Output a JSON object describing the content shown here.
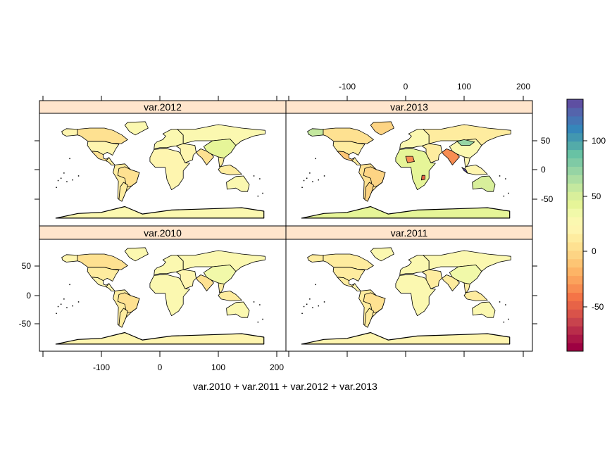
{
  "chart_data": {
    "type": "heatmap",
    "subtype": "choropleth-world-map-small-multiples",
    "formula_label": "var.2010 + var.2011 + var.2012 + var.2013",
    "xlabel": "var.2010 + var.2011 + var.2012 + var.2013",
    "ylabel": "",
    "x_ticks": [
      -100,
      0,
      100,
      200
    ],
    "y_ticks": [
      -50,
      0,
      50
    ],
    "xlim": [
      -200,
      210
    ],
    "ylim": [
      -95,
      95
    ],
    "layout": "2x2",
    "panels": [
      {
        "name": "var.2012",
        "row": 0,
        "col": 0,
        "regions": {
          "north_america": 5,
          "canada": 8,
          "alaska": 20,
          "greenland": 25,
          "usa": 18,
          "mexico": 5,
          "central_america": 10,
          "south_america": 15,
          "brazil": 5,
          "argentina": 12,
          "europe": 25,
          "russia": 28,
          "africa": 22,
          "middle_east": 18,
          "india": 5,
          "china": 40,
          "southeast_asia": 15,
          "australia": 25,
          "antarctica": 28
        }
      },
      {
        "name": "var.2013",
        "row": 0,
        "col": 1,
        "regions": {
          "north_america": 5,
          "canada": 8,
          "alaska": 55,
          "greenland": -5,
          "usa": 12,
          "mexico": -10,
          "central_america": 15,
          "south_america": 5,
          "brazil": -5,
          "argentina": 0,
          "europe": 30,
          "russia": 15,
          "africa": 45,
          "middle_east": 10,
          "india": -30,
          "china": 30,
          "southeast_asia": 20,
          "australia": 50,
          "antarctica": 45,
          "west_africa_hotspot": -35,
          "southern_africa_hotspot": -50,
          "mongolia": 70,
          "indonesia": 130
        }
      },
      {
        "name": "var.2010",
        "row": 1,
        "col": 0,
        "regions": {
          "north_america": 8,
          "canada": 8,
          "alaska": 20,
          "greenland": 25,
          "usa": 15,
          "mexico": 18,
          "central_america": 20,
          "south_america": 15,
          "brazil": 5,
          "argentina": 12,
          "europe": 25,
          "russia": 28,
          "africa": 25,
          "middle_east": 18,
          "india": 8,
          "china": 38,
          "southeast_asia": 15,
          "australia": 25,
          "antarctica": 18
        }
      },
      {
        "name": "var.2011",
        "row": 1,
        "col": 1,
        "regions": {
          "north_america": 8,
          "canada": 10,
          "alaska": 12,
          "greenland": 25,
          "usa": 10,
          "mexico": 12,
          "central_america": 18,
          "south_america": 12,
          "brazil": 5,
          "argentina": 10,
          "europe": 25,
          "russia": 28,
          "africa": 25,
          "middle_east": 15,
          "india": 10,
          "china": 38,
          "southeast_asia": 15,
          "australia": 28,
          "antarctica": 20
        }
      }
    ],
    "colorkey": {
      "position": "right",
      "range": [
        -90,
        137
      ],
      "ticks": [
        -50,
        0,
        50,
        100
      ],
      "palette": "Spectral (reversed order: low=red, high=purple-blue)",
      "colors": [
        "#9E0142",
        "#AB1746",
        "#B92D4A",
        "#C8434D",
        "#D9534A",
        "#E76347",
        "#F47447",
        "#F88D52",
        "#FBA25C",
        "#FDB466",
        "#FDC574",
        "#FDD484",
        "#FEE191",
        "#FEEC9F",
        "#FEF5AF",
        "#FBF8B0",
        "#F1F9A9",
        "#E6F598",
        "#D8EF9B",
        "#C4E89F",
        "#ADDEA2",
        "#96D4A4",
        "#7FCAA5",
        "#68C2A4",
        "#53ABA9",
        "#4297B0",
        "#3586BA",
        "#4575B4",
        "#5464AC",
        "#5E4FA2"
      ]
    }
  },
  "axes": {
    "top_tick_labels": [
      "-100",
      "0",
      "100",
      "200"
    ],
    "bottom_tick_labels": [
      "-100",
      "0",
      "100",
      "200"
    ],
    "left_tick_labels": [
      "50",
      "0",
      "-50"
    ],
    "right_tick_labels": [
      "50",
      "0",
      "-50"
    ],
    "colorkey_tick_labels": [
      "100",
      "50",
      "0",
      "-50"
    ]
  },
  "strips": {
    "p2012": "var.2012",
    "p2013": "var.2013",
    "p2010": "var.2010",
    "p2011": "var.2011"
  },
  "colors": {
    "strip_bg": "#FFE5CC",
    "border": "#000000",
    "background": "#FFFFFF"
  }
}
